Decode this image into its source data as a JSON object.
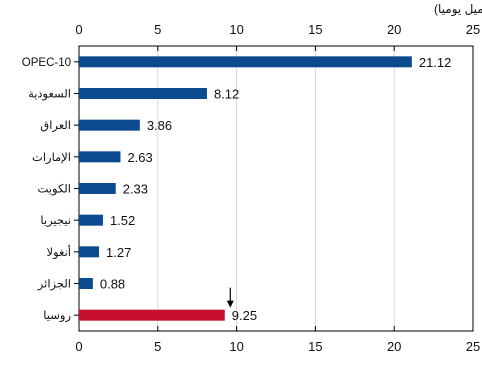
{
  "chart_data": {
    "type": "bar",
    "orientation": "horizontal",
    "unit_label": "(مليون برميل يوميا)",
    "categories": [
      "OPEC-10",
      "السعودية",
      "العراق",
      "الإمارات",
      "الكويت",
      "نيجيريا",
      "أنغولا",
      "الجزائر",
      "روسيا"
    ],
    "values": [
      21.12,
      8.12,
      3.86,
      2.63,
      2.33,
      1.52,
      1.27,
      0.88,
      9.25
    ],
    "value_labels": [
      "21.12",
      "8.12",
      "3.86",
      "2.63",
      "2.33",
      "1.52",
      "1.27",
      "0.88",
      "9.25"
    ],
    "xlim": [
      0,
      25
    ],
    "xticks": [
      0,
      5,
      10,
      15,
      20,
      25
    ],
    "xtick_labels": [
      "0",
      "5",
      "10",
      "15",
      "20",
      "25"
    ],
    "grid": true,
    "bar_colors": [
      "#0b4a8f",
      "#0b4a8f",
      "#0b4a8f",
      "#0b4a8f",
      "#0b4a8f",
      "#0b4a8f",
      "#0b4a8f",
      "#0b4a8f",
      "#c8102e"
    ],
    "marker": {
      "category": "روسيا",
      "x": 9.6,
      "symbol": "down-arrow"
    }
  }
}
